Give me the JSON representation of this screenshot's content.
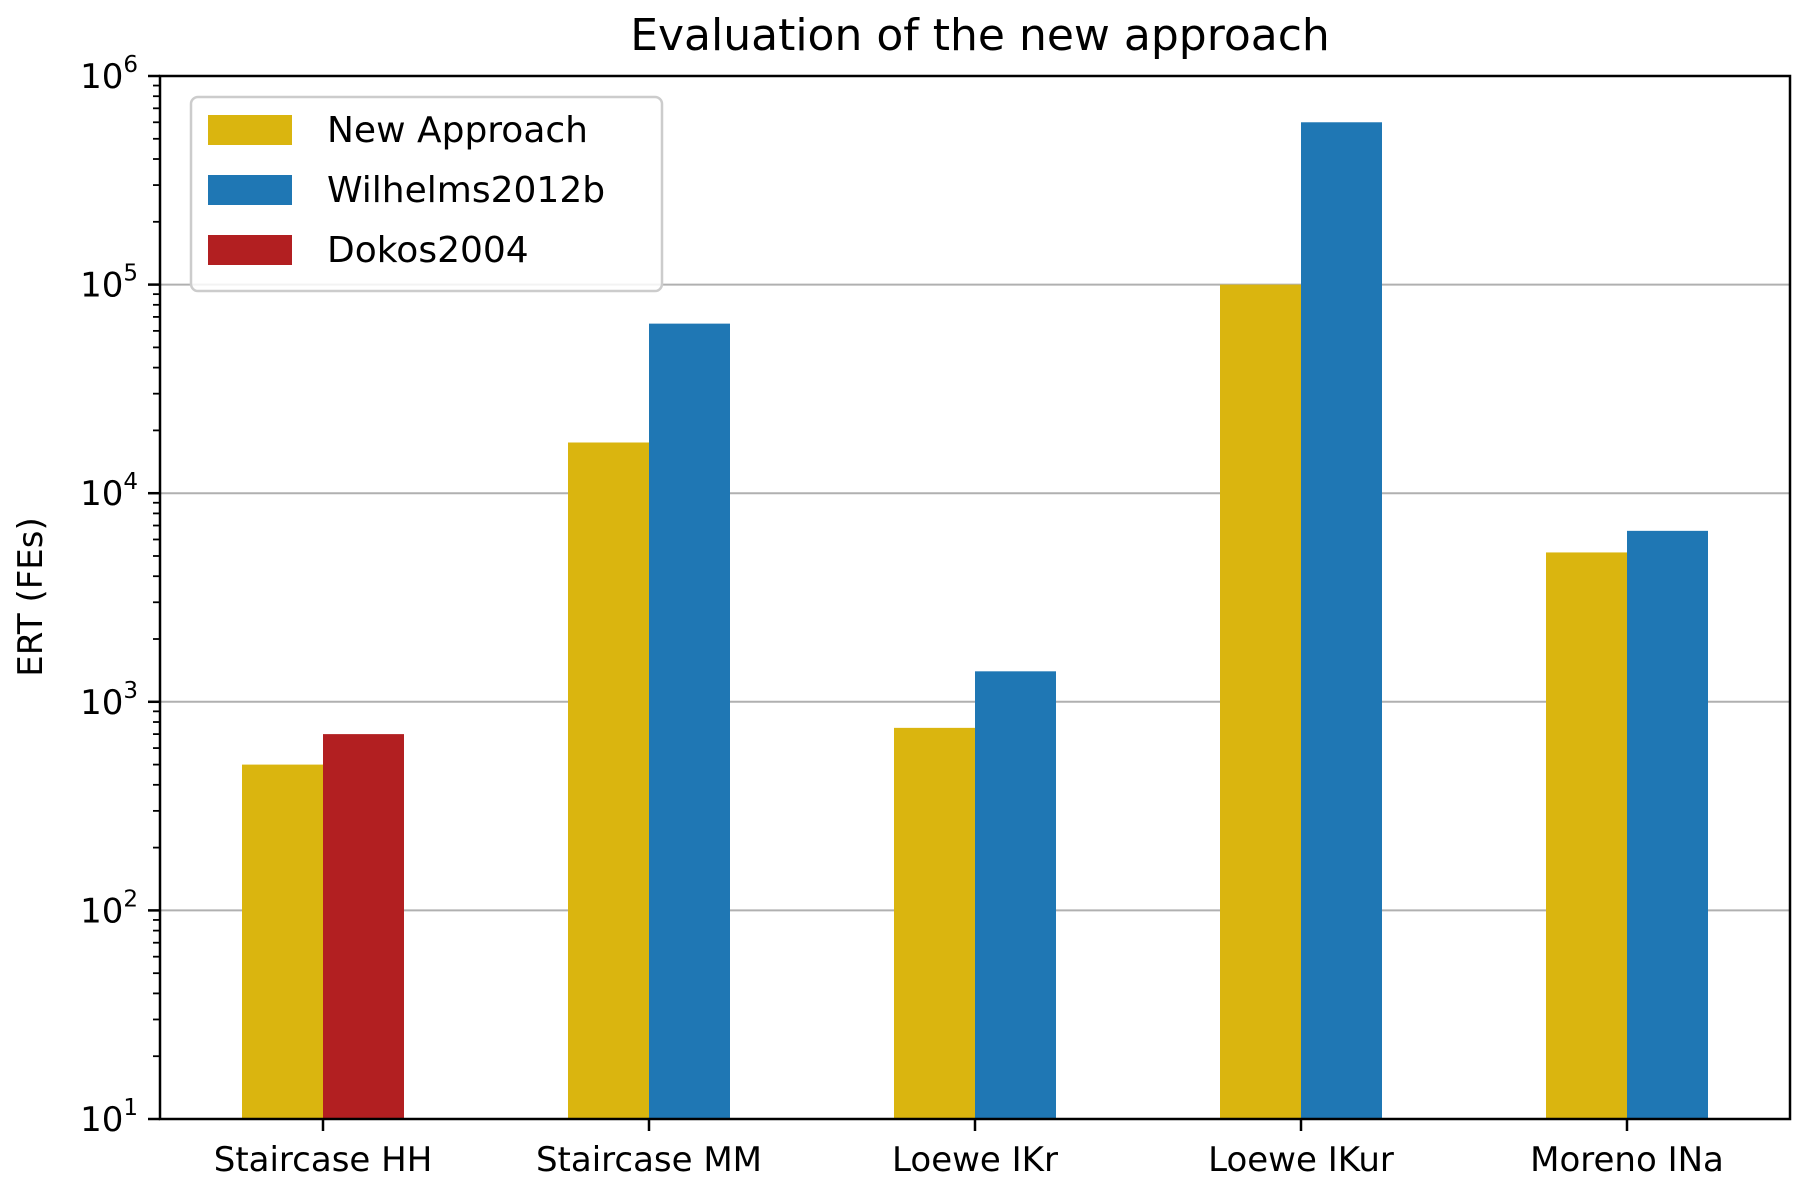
{
  "chart_data": {
    "type": "bar",
    "title": "Evaluation of the new approach",
    "xlabel": "",
    "ylabel": "ERT (FEs)",
    "yscale": "log",
    "ylim": [
      10,
      1000000
    ],
    "yticks": [
      {
        "base": "10",
        "exp": "1"
      },
      {
        "base": "10",
        "exp": "2"
      },
      {
        "base": "10",
        "exp": "3"
      },
      {
        "base": "10",
        "exp": "4"
      },
      {
        "base": "10",
        "exp": "5"
      },
      {
        "base": "10",
        "exp": "6"
      }
    ],
    "grid": "y-major",
    "legend_position": "top-left",
    "categories": [
      "Staircase HH",
      "Staircase MM",
      "Loewe IKr",
      "Loewe IKur",
      "Moreno INa"
    ],
    "series": [
      {
        "name": "New Approach",
        "color": "#dab50f",
        "values": [
          500,
          17500,
          750,
          100000,
          5200
        ]
      },
      {
        "name": "Wilhelms2012b",
        "color": "#1f77b4",
        "values": [
          null,
          65000,
          1400,
          600000,
          6600
        ]
      },
      {
        "name": "Dokos2004",
        "color": "#b21f21",
        "values": [
          700,
          null,
          null,
          null,
          null
        ]
      }
    ]
  }
}
